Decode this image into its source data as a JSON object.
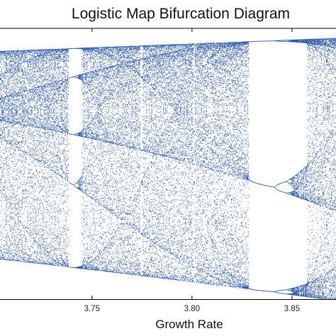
{
  "chart_data": {
    "type": "scatter",
    "title": "Logistic Map Bifurcation Diagram",
    "xlabel": "Growth Rate",
    "ylabel": "",
    "xlim": [
      3.704,
      3.872
    ],
    "ylim": [
      0.125,
      1.0
    ],
    "xticks": [
      {
        "value": 3.75,
        "label": "3.75"
      },
      {
        "value": 3.8,
        "label": "3.80"
      },
      {
        "value": 3.85,
        "label": "3.85"
      }
    ],
    "grid": false,
    "legend": false,
    "point_color": "#0b3d9c",
    "map": "x(n+1) = r * x(n) * (1 - x(n))",
    "x_start": 3.704,
    "x_end": 3.872,
    "x_step": 0.00025,
    "warmup_iterations": 300,
    "plotted_iterations": 70
  }
}
